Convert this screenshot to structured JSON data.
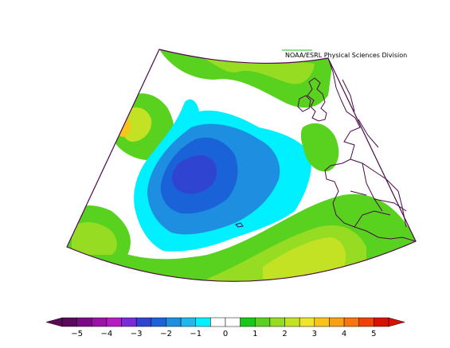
{
  "credit": "NOAA/ESRL Physical Sciences Division",
  "colorbar": {
    "tick_labels": [
      "−5",
      "−4",
      "−3",
      "−2",
      "−1",
      "0",
      "1",
      "2",
      "3",
      "4",
      "5"
    ],
    "min": -5,
    "max": 5,
    "step": 0.5,
    "colors": [
      "#5a0a5a",
      "#7a0a86",
      "#9a12a6",
      "#b51cc4",
      "#7a2ad8",
      "#2f44d0",
      "#1a62d8",
      "#1e8ee0",
      "#20b8ea",
      "#00f0ff",
      "#ffffff",
      "#ffffff",
      "#18c818",
      "#58d21e",
      "#96dc22",
      "#c4e224",
      "#eee428",
      "#f8c418",
      "#f8a014",
      "#f8740e",
      "#f04008",
      "#d81000"
    ]
  },
  "map": {
    "region": "North Atlantic and Europe",
    "shaded_levels": {
      "blue": "#1a62d8",
      "medium_blue": "#1e8ee0",
      "cyan": "#00f0ff",
      "green": "#58d21e",
      "light_green": "#96dc22",
      "yellow_green": "#c4e224",
      "yellow": "#eee428",
      "orange": "#f8c418",
      "dark_blue": "#2f44d0"
    }
  }
}
